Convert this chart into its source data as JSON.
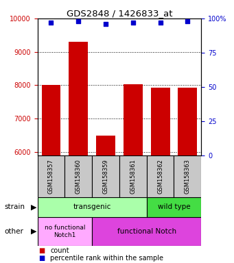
{
  "title": "GDS2848 / 1426833_at",
  "samples": [
    "GSM158357",
    "GSM158360",
    "GSM158359",
    "GSM158361",
    "GSM158362",
    "GSM158363"
  ],
  "counts": [
    8000,
    9300,
    6490,
    8020,
    7920,
    7930
  ],
  "percentiles": [
    97,
    98,
    96,
    97,
    97,
    98
  ],
  "ylim_left": [
    5900,
    10000
  ],
  "yticks_left": [
    6000,
    7000,
    8000,
    9000,
    10000
  ],
  "yticks_right": [
    0,
    25,
    50,
    75,
    100
  ],
  "bar_color": "#cc0000",
  "dot_color": "#0000cc",
  "tick_color_left": "#cc0000",
  "tick_color_right": "#0000cc",
  "background_color": "#ffffff",
  "transgenic_color": "#aaffaa",
  "wildtype_color": "#44dd44",
  "no_functional_color": "#ffaaff",
  "functional_color": "#dd44dd"
}
